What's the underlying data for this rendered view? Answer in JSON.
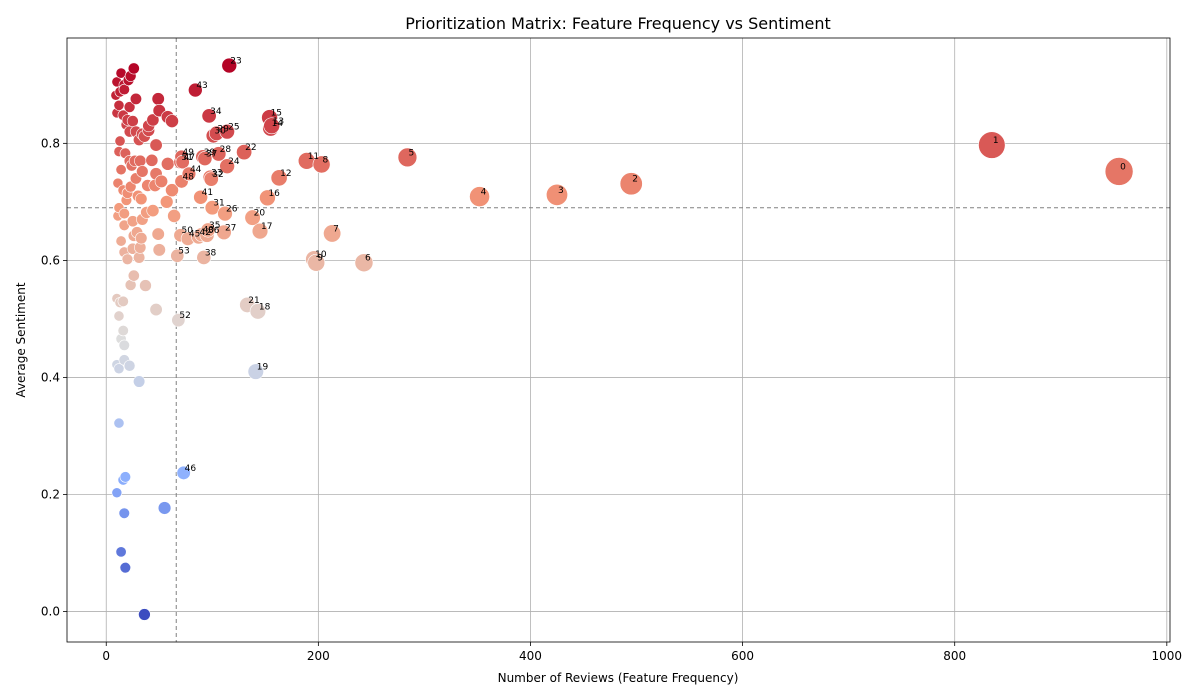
{
  "chart_data": {
    "type": "scatter",
    "title": "Prioritization Matrix: Feature Frequency vs Sentiment",
    "xlabel": "Number of Reviews (Feature Frequency)",
    "ylabel": "Average Sentiment",
    "xlim": [
      -37,
      1003
    ],
    "ylim": [
      -0.052,
      0.98
    ],
    "xticks": [
      0,
      200,
      400,
      600,
      800,
      1000
    ],
    "yticks": [
      0.0,
      0.2,
      0.4,
      0.6,
      0.8
    ],
    "xtick_labels": [
      "0",
      "200",
      "400",
      "600",
      "800",
      "1000"
    ],
    "ytick_labels": [
      "0.0",
      "0.2",
      "0.4",
      "0.6",
      "0.8"
    ],
    "grid": true,
    "reference_lines": {
      "x": 66,
      "y": 0.69
    },
    "colormap": "coolwarm",
    "color_range": [
      0.0,
      0.93
    ],
    "labeled_points": [
      {
        "label": "0",
        "x": 955,
        "y": 0.752
      },
      {
        "label": "1",
        "x": 835,
        "y": 0.797
      },
      {
        "label": "2",
        "x": 495,
        "y": 0.731
      },
      {
        "label": "3",
        "x": 425,
        "y": 0.712
      },
      {
        "label": "4",
        "x": 352,
        "y": 0.709
      },
      {
        "label": "5",
        "x": 284,
        "y": 0.776
      },
      {
        "label": "6",
        "x": 243,
        "y": 0.596
      },
      {
        "label": "7",
        "x": 213,
        "y": 0.646
      },
      {
        "label": "8",
        "x": 203,
        "y": 0.764
      },
      {
        "label": "9",
        "x": 198,
        "y": 0.596
      },
      {
        "label": "10",
        "x": 196,
        "y": 0.602
      },
      {
        "label": "11",
        "x": 189,
        "y": 0.77
      },
      {
        "label": "12",
        "x": 163,
        "y": 0.741
      },
      {
        "label": "13",
        "x": 156,
        "y": 0.83
      },
      {
        "label": "14",
        "x": 155,
        "y": 0.826
      },
      {
        "label": "15",
        "x": 154,
        "y": 0.844
      },
      {
        "label": "16",
        "x": 152,
        "y": 0.707
      },
      {
        "label": "17",
        "x": 145,
        "y": 0.65
      },
      {
        "label": "18",
        "x": 143,
        "y": 0.513
      },
      {
        "label": "19",
        "x": 141,
        "y": 0.41
      },
      {
        "label": "20",
        "x": 138,
        "y": 0.673
      },
      {
        "label": "21",
        "x": 133,
        "y": 0.524
      },
      {
        "label": "22",
        "x": 130,
        "y": 0.785
      },
      {
        "label": "23",
        "x": 116,
        "y": 0.933
      },
      {
        "label": "24",
        "x": 114,
        "y": 0.761
      },
      {
        "label": "25",
        "x": 114,
        "y": 0.82
      },
      {
        "label": "26",
        "x": 112,
        "y": 0.68
      },
      {
        "label": "27",
        "x": 111,
        "y": 0.648
      },
      {
        "label": "28",
        "x": 106,
        "y": 0.782
      },
      {
        "label": "29",
        "x": 104,
        "y": 0.817
      },
      {
        "label": "30",
        "x": 101,
        "y": 0.813
      },
      {
        "label": "31",
        "x": 100,
        "y": 0.69
      },
      {
        "label": "32",
        "x": 99,
        "y": 0.739
      },
      {
        "label": "33",
        "x": 98,
        "y": 0.742
      },
      {
        "label": "34",
        "x": 97,
        "y": 0.847
      },
      {
        "label": "35",
        "x": 96,
        "y": 0.652
      },
      {
        "label": "36",
        "x": 95,
        "y": 0.643
      },
      {
        "label": "37",
        "x": 93,
        "y": 0.774
      },
      {
        "label": "38",
        "x": 92,
        "y": 0.605
      },
      {
        "label": "39",
        "x": 91,
        "y": 0.777
      },
      {
        "label": "40",
        "x": 90,
        "y": 0.644
      },
      {
        "label": "41",
        "x": 89,
        "y": 0.708
      },
      {
        "label": "42",
        "x": 87,
        "y": 0.64
      },
      {
        "label": "43",
        "x": 84,
        "y": 0.891
      },
      {
        "label": "44",
        "x": 78,
        "y": 0.748
      },
      {
        "label": "45",
        "x": 77,
        "y": 0.637
      },
      {
        "label": "46",
        "x": 73,
        "y": 0.237
      },
      {
        "label": "47",
        "x": 72,
        "y": 0.768
      },
      {
        "label": "48",
        "x": 71,
        "y": 0.735
      },
      {
        "label": "49",
        "x": 71,
        "y": 0.777
      },
      {
        "label": "50",
        "x": 70,
        "y": 0.643
      },
      {
        "label": "51",
        "x": 70,
        "y": 0.768
      },
      {
        "label": "52",
        "x": 68,
        "y": 0.498
      },
      {
        "label": "53",
        "x": 67,
        "y": 0.608
      }
    ],
    "unlabeled_points": [
      [
        10,
        0.905
      ],
      [
        17,
        0.9
      ],
      [
        23,
        0.915
      ],
      [
        26,
        0.928
      ],
      [
        14,
        0.92
      ],
      [
        21,
        0.908
      ],
      [
        9,
        0.882
      ],
      [
        13,
        0.888
      ],
      [
        28,
        0.876
      ],
      [
        17,
        0.892
      ],
      [
        12,
        0.865
      ],
      [
        22,
        0.862
      ],
      [
        10,
        0.852
      ],
      [
        16,
        0.848
      ],
      [
        20,
        0.84
      ],
      [
        25,
        0.838
      ],
      [
        19,
        0.832
      ],
      [
        13,
        0.804
      ],
      [
        31,
        0.806
      ],
      [
        36,
        0.812
      ],
      [
        40,
        0.822
      ],
      [
        44,
        0.84
      ],
      [
        50,
        0.856
      ],
      [
        58,
        0.845
      ],
      [
        62,
        0.838
      ],
      [
        49,
        0.876
      ],
      [
        40,
        0.83
      ],
      [
        34,
        0.816
      ],
      [
        22,
        0.82
      ],
      [
        28,
        0.82
      ],
      [
        47,
        0.797
      ],
      [
        12,
        0.786
      ],
      [
        18,
        0.783
      ],
      [
        22,
        0.77
      ],
      [
        27,
        0.77
      ],
      [
        32,
        0.77
      ],
      [
        43,
        0.771
      ],
      [
        58,
        0.765
      ],
      [
        24,
        0.762
      ],
      [
        14,
        0.755
      ],
      [
        34,
        0.752
      ],
      [
        47,
        0.748
      ],
      [
        28,
        0.74
      ],
      [
        39,
        0.728
      ],
      [
        46,
        0.728
      ],
      [
        52,
        0.735
      ],
      [
        11,
        0.732
      ],
      [
        16,
        0.72
      ],
      [
        23,
        0.726
      ],
      [
        20,
        0.715
      ],
      [
        62,
        0.72
      ],
      [
        30,
        0.71
      ],
      [
        33,
        0.705
      ],
      [
        19,
        0.703
      ],
      [
        57,
        0.7
      ],
      [
        44,
        0.685
      ],
      [
        38,
        0.682
      ],
      [
        12,
        0.69
      ],
      [
        17,
        0.68
      ],
      [
        64,
        0.676
      ],
      [
        11,
        0.676
      ],
      [
        25,
        0.667
      ],
      [
        34,
        0.67
      ],
      [
        17,
        0.66
      ],
      [
        29,
        0.648
      ],
      [
        49,
        0.645
      ],
      [
        26,
        0.642
      ],
      [
        33,
        0.638
      ],
      [
        14,
        0.633
      ],
      [
        32,
        0.622
      ],
      [
        25,
        0.62
      ],
      [
        50,
        0.618
      ],
      [
        17,
        0.614
      ],
      [
        31,
        0.605
      ],
      [
        20,
        0.602
      ],
      [
        26,
        0.574
      ],
      [
        23,
        0.558
      ],
      [
        37,
        0.557
      ],
      [
        10,
        0.535
      ],
      [
        16,
        0.53
      ],
      [
        13,
        0.528
      ],
      [
        47,
        0.516
      ],
      [
        12,
        0.505
      ],
      [
        16,
        0.48
      ],
      [
        17,
        0.455
      ],
      [
        14,
        0.466
      ],
      [
        10,
        0.422
      ],
      [
        22,
        0.42
      ],
      [
        12,
        0.415
      ],
      [
        17,
        0.43
      ],
      [
        31,
        0.393
      ],
      [
        12,
        0.322
      ],
      [
        18,
        0.23
      ],
      [
        16,
        0.225
      ],
      [
        10,
        0.203
      ],
      [
        17,
        0.168
      ],
      [
        55,
        0.177
      ],
      [
        14,
        0.102
      ],
      [
        18,
        0.075
      ],
      [
        36,
        -0.005
      ]
    ]
  }
}
